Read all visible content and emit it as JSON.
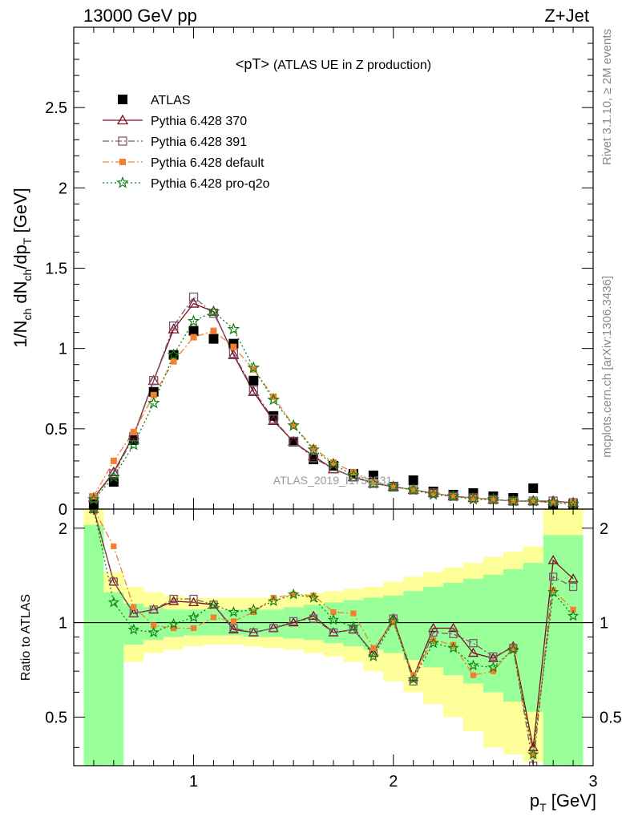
{
  "header": {
    "left": "13000 GeV pp",
    "right": "Z+Jet"
  },
  "side_labels": {
    "rivet": "Rivet 3.1.10, ≥ 2M events",
    "source": "mcplots.cern.ch [arXiv:1306.3436]"
  },
  "chart_data": [
    {
      "type": "scatter",
      "title": "<pT>",
      "subtitle": "(ATLAS UE in Z production)",
      "watermark": "ATLAS_2019_I1736531",
      "ylabel_parts": [
        "1/N",
        "ch",
        " dN",
        "ch",
        "/dp",
        "T",
        " [GeV]"
      ],
      "xlim": [
        0.4,
        3.0
      ],
      "ylim": [
        0,
        3.0
      ],
      "yticks": [
        0,
        0.5,
        1,
        1.5,
        2,
        2.5
      ],
      "ytick_labels": [
        "0",
        "0.5",
        "1",
        "1.5",
        "2",
        "2.5"
      ],
      "legend_position": "top-left",
      "x": [
        0.5,
        0.6,
        0.7,
        0.8,
        0.9,
        1.0,
        1.1,
        1.2,
        1.3,
        1.4,
        1.5,
        1.6,
        1.7,
        1.8,
        1.9,
        2.0,
        2.1,
        2.2,
        2.3,
        2.4,
        2.5,
        2.6,
        2.7,
        2.8,
        2.9
      ],
      "series": [
        {
          "name": "ATLAS",
          "color": "#000000",
          "marker": "square-filled",
          "line": "none",
          "values": [
            0.03,
            0.17,
            0.43,
            0.73,
            0.96,
            1.11,
            1.06,
            1.03,
            0.8,
            0.58,
            0.42,
            0.31,
            0.27,
            0.22,
            0.21,
            0.14,
            0.18,
            0.11,
            0.09,
            0.1,
            0.08,
            0.07,
            0.13,
            0.03,
            0.03
          ]
        },
        {
          "name": "Pythia 6.428 370",
          "color": "#7a1120",
          "marker": "triangle-open",
          "line": "solid",
          "values": [
            0.07,
            0.23,
            0.46,
            0.8,
            1.12,
            1.28,
            1.23,
            0.96,
            0.73,
            0.55,
            0.42,
            0.33,
            0.25,
            0.2,
            0.16,
            0.14,
            0.12,
            0.1,
            0.08,
            0.07,
            0.06,
            0.05,
            0.05,
            0.05,
            0.04
          ]
        },
        {
          "name": "Pythia 6.428 391",
          "color": "#7a5a6e",
          "marker": "square-open",
          "line": "dash-dot",
          "values": [
            0.07,
            0.22,
            0.45,
            0.8,
            1.14,
            1.32,
            1.22,
            0.97,
            0.74,
            0.56,
            0.42,
            0.32,
            0.25,
            0.2,
            0.16,
            0.14,
            0.12,
            0.1,
            0.08,
            0.07,
            0.06,
            0.05,
            0.05,
            0.05,
            0.04
          ]
        },
        {
          "name": "Pythia 6.428 default",
          "color": "#f28030",
          "marker": "square-filled-small",
          "line": "dash-dot",
          "values": [
            0.08,
            0.3,
            0.48,
            0.71,
            0.92,
            1.07,
            1.11,
            1.01,
            0.87,
            0.7,
            0.52,
            0.38,
            0.29,
            0.23,
            0.17,
            0.14,
            0.12,
            0.1,
            0.08,
            0.07,
            0.06,
            0.05,
            0.05,
            0.04,
            0.04
          ]
        },
        {
          "name": "Pythia 6.428 pro-q2o",
          "color": "#108010",
          "marker": "star-open",
          "line": "dotted",
          "values": [
            0.06,
            0.2,
            0.4,
            0.66,
            0.96,
            1.17,
            1.23,
            1.12,
            0.88,
            0.68,
            0.52,
            0.37,
            0.28,
            0.21,
            0.16,
            0.14,
            0.12,
            0.09,
            0.08,
            0.06,
            0.06,
            0.05,
            0.05,
            0.04,
            0.03
          ]
        }
      ]
    },
    {
      "type": "line",
      "ylabel": "Ratio to ATLAS",
      "xlabel": "p_T [GeV]",
      "xlabel_parts": [
        "p",
        "T",
        " [GeV]"
      ],
      "xlim": [
        0.4,
        3.0
      ],
      "ylim": [
        0.35,
        2.3
      ],
      "xticks": [
        1,
        2,
        3
      ],
      "xtick_labels": [
        "1",
        "2",
        "3"
      ],
      "yticks": [
        0.5,
        1,
        2
      ],
      "ytick_labels": [
        "0.5",
        "1",
        "2"
      ],
      "reference_line": 1,
      "bands": {
        "edges": [
          0.45,
          0.55,
          0.65,
          0.75,
          0.85,
          0.95,
          1.05,
          1.15,
          1.25,
          1.35,
          1.45,
          1.55,
          1.65,
          1.75,
          1.85,
          1.95,
          2.05,
          2.15,
          2.25,
          2.35,
          2.45,
          2.55,
          2.65,
          2.75,
          2.85,
          2.95
        ],
        "outer_color": "#ffff99",
        "inner_color": "#99ff99",
        "outer_lo": [
          0.3,
          0.6,
          0.75,
          0.8,
          0.82,
          0.84,
          0.85,
          0.85,
          0.84,
          0.83,
          0.82,
          0.8,
          0.78,
          0.75,
          0.7,
          0.65,
          0.6,
          0.55,
          0.5,
          0.45,
          0.4,
          0.38,
          0.36,
          0.36,
          0.36
        ],
        "outer_hi": [
          2.3,
          1.45,
          1.3,
          1.25,
          1.22,
          1.2,
          1.2,
          1.2,
          1.2,
          1.2,
          1.22,
          1.24,
          1.26,
          1.28,
          1.3,
          1.35,
          1.4,
          1.45,
          1.5,
          1.55,
          1.62,
          1.68,
          1.75,
          2.3,
          2.3
        ],
        "inner_lo": [
          0.3,
          0.35,
          0.85,
          0.88,
          0.9,
          0.91,
          0.91,
          0.91,
          0.9,
          0.9,
          0.89,
          0.88,
          0.86,
          0.84,
          0.82,
          0.8,
          0.76,
          0.72,
          0.68,
          0.64,
          0.6,
          0.56,
          0.52,
          0.3,
          0.3
        ],
        "inner_hi": [
          2.05,
          1.25,
          1.15,
          1.12,
          1.1,
          1.1,
          1.1,
          1.1,
          1.1,
          1.1,
          1.12,
          1.14,
          1.16,
          1.18,
          1.2,
          1.22,
          1.26,
          1.3,
          1.34,
          1.38,
          1.42,
          1.48,
          1.55,
          1.9,
          1.9
        ]
      },
      "series": [
        {
          "name": "Pythia 6.428 370",
          "color": "#7a1120",
          "marker": "triangle-open",
          "line": "solid",
          "values": [
            2.3,
            1.35,
            1.07,
            1.1,
            1.17,
            1.16,
            1.14,
            0.95,
            0.93,
            0.96,
            1.0,
            1.05,
            0.93,
            0.95,
            0.8,
            1.03,
            0.67,
            0.96,
            0.96,
            0.8,
            0.77,
            0.84,
            0.4,
            1.58,
            1.38
          ]
        },
        {
          "name": "Pythia 6.428 391",
          "color": "#7a5a6e",
          "marker": "square-open",
          "line": "dash-dot",
          "values": [
            2.3,
            1.35,
            1.07,
            1.1,
            1.19,
            1.19,
            1.14,
            0.96,
            0.93,
            0.96,
            1.01,
            1.03,
            0.93,
            0.95,
            0.8,
            1.03,
            0.65,
            0.93,
            0.92,
            0.86,
            0.78,
            0.83,
            0.35,
            1.4,
            1.3
          ]
        },
        {
          "name": "Pythia 6.428 default",
          "color": "#f28030",
          "marker": "square-filled-small",
          "line": "dash-dot",
          "values": [
            2.3,
            1.75,
            1.12,
            0.98,
            0.96,
            0.96,
            1.04,
            1.01,
            1.08,
            1.2,
            1.23,
            1.22,
            1.08,
            1.07,
            0.83,
            1.0,
            0.68,
            0.88,
            0.85,
            0.68,
            0.7,
            0.83,
            0.38,
            1.27,
            1.1
          ]
        },
        {
          "name": "Pythia 6.428 pro-q2o",
          "color": "#108010",
          "marker": "star-open",
          "line": "dotted",
          "values": [
            2.3,
            1.16,
            0.95,
            0.93,
            0.99,
            1.04,
            1.14,
            1.08,
            1.1,
            1.17,
            1.23,
            1.2,
            1.02,
            0.97,
            0.78,
            1.01,
            0.66,
            0.86,
            0.83,
            0.73,
            0.72,
            0.82,
            0.38,
            1.25,
            1.05
          ]
        }
      ]
    }
  ]
}
